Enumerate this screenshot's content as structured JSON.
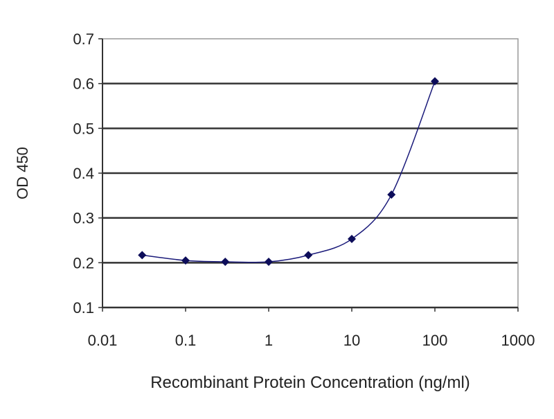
{
  "chart_data": {
    "type": "line",
    "title": "",
    "xlabel": "Recombinant Protein Concentration (ng/ml)",
    "ylabel": "OD 450",
    "xscale": "log",
    "xlim": [
      0.01,
      1000
    ],
    "ylim": [
      0.1,
      0.7
    ],
    "xticks": [
      "0.01",
      "0.1",
      "1",
      "10",
      "100",
      "1000"
    ],
    "yticks": [
      "0.1",
      "0.2",
      "0.3",
      "0.4",
      "0.5",
      "0.6",
      "0.7"
    ],
    "grid": "horizontal",
    "legend": "none",
    "series": [
      {
        "x": [
          0.03,
          0.1,
          0.3,
          1,
          3,
          10,
          30,
          100
        ],
        "y": [
          0.217,
          0.205,
          0.202,
          0.202,
          0.217,
          0.253,
          0.352,
          0.605
        ],
        "color": "#1a1a7a",
        "smooth": true
      }
    ]
  }
}
